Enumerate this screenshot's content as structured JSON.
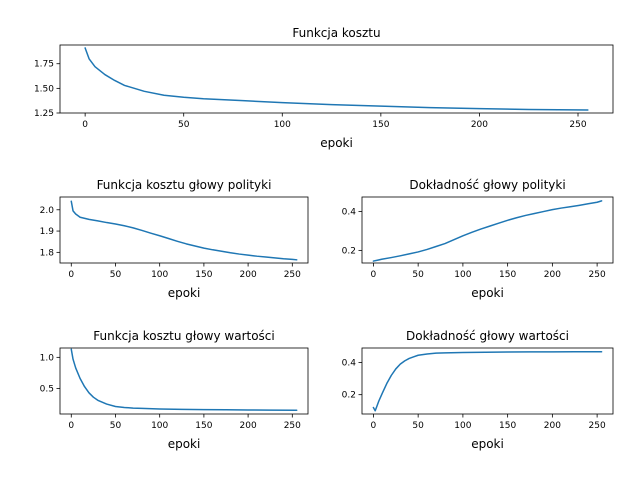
{
  "chart_data": [
    {
      "type": "line",
      "title": "Funkcja kosztu",
      "xlabel": "epoki",
      "ylabel": "",
      "xlim": [
        -12.75,
        267.75
      ],
      "ylim": [
        1.25,
        1.94
      ],
      "xticks": [
        0,
        50,
        100,
        150,
        200,
        250
      ],
      "yticks": [
        1.25,
        1.5,
        1.75
      ],
      "ytick_labels": [
        "1.25",
        "1.50",
        "1.75"
      ],
      "grid": false,
      "series": [
        {
          "x": [
            0,
            2,
            5,
            10,
            15,
            20,
            30,
            40,
            50,
            60,
            80,
            100,
            125,
            150,
            175,
            200,
            225,
            255
          ],
          "values": [
            1.91,
            1.8,
            1.72,
            1.64,
            1.58,
            1.53,
            1.47,
            1.43,
            1.41,
            1.395,
            1.375,
            1.355,
            1.335,
            1.32,
            1.305,
            1.295,
            1.285,
            1.28
          ]
        }
      ]
    },
    {
      "type": "line",
      "title": "Funkcja kosztu głowy polityki",
      "xlabel": "epoki",
      "ylabel": "",
      "xlim": [
        -12.75,
        267.75
      ],
      "ylim": [
        1.75,
        2.06
      ],
      "xticks": [
        0,
        50,
        100,
        150,
        200,
        250
      ],
      "yticks": [
        1.8,
        1.9,
        2.0
      ],
      "ytick_labels": [
        "1.8",
        "1.9",
        "2.0"
      ],
      "grid": false,
      "series": [
        {
          "x": [
            0,
            2,
            5,
            10,
            20,
            30,
            40,
            50,
            60,
            70,
            80,
            90,
            100,
            110,
            120,
            130,
            140,
            150,
            160,
            170,
            180,
            190,
            200,
            210,
            220,
            230,
            240,
            250,
            255
          ],
          "values": [
            2.04,
            1.995,
            1.98,
            1.965,
            1.955,
            1.948,
            1.94,
            1.933,
            1.925,
            1.915,
            1.903,
            1.89,
            1.878,
            1.865,
            1.852,
            1.84,
            1.83,
            1.82,
            1.812,
            1.805,
            1.798,
            1.792,
            1.787,
            1.782,
            1.778,
            1.774,
            1.77,
            1.767,
            1.765
          ]
        }
      ]
    },
    {
      "type": "line",
      "title": "Dokładność głowy polityki",
      "xlabel": "epoki",
      "ylabel": "",
      "xlim": [
        -12.75,
        267.75
      ],
      "ylim": [
        0.135,
        0.475
      ],
      "xticks": [
        0,
        50,
        100,
        150,
        200,
        250
      ],
      "yticks": [
        0.2,
        0.4
      ],
      "ytick_labels": [
        "0.2",
        "0.4"
      ],
      "grid": false,
      "series": [
        {
          "x": [
            0,
            5,
            10,
            20,
            30,
            40,
            50,
            60,
            70,
            80,
            90,
            100,
            110,
            120,
            130,
            140,
            150,
            160,
            170,
            180,
            190,
            200,
            210,
            220,
            230,
            240,
            250,
            255
          ],
          "values": [
            0.145,
            0.15,
            0.155,
            0.163,
            0.172,
            0.182,
            0.192,
            0.205,
            0.22,
            0.235,
            0.255,
            0.275,
            0.293,
            0.31,
            0.325,
            0.34,
            0.355,
            0.368,
            0.38,
            0.39,
            0.4,
            0.41,
            0.418,
            0.425,
            0.432,
            0.44,
            0.448,
            0.455
          ]
        }
      ]
    },
    {
      "type": "line",
      "title": "Funkcja kosztu głowy wartości",
      "xlabel": "epoki",
      "ylabel": "",
      "xlim": [
        -12.75,
        267.75
      ],
      "ylim": [
        0.09,
        1.15
      ],
      "xticks": [
        0,
        50,
        100,
        150,
        200,
        250
      ],
      "yticks": [
        0.5,
        1.0
      ],
      "ytick_labels": [
        "0.5",
        "1.0"
      ],
      "grid": false,
      "series": [
        {
          "x": [
            0,
            2,
            5,
            10,
            15,
            20,
            25,
            30,
            40,
            50,
            60,
            70,
            80,
            100,
            125,
            150,
            175,
            200,
            225,
            255
          ],
          "values": [
            1.13,
            0.97,
            0.83,
            0.66,
            0.53,
            0.43,
            0.36,
            0.31,
            0.25,
            0.21,
            0.195,
            0.185,
            0.18,
            0.17,
            0.165,
            0.16,
            0.158,
            0.155,
            0.153,
            0.15
          ]
        }
      ]
    },
    {
      "type": "line",
      "title": "Dokładność głowy wartości",
      "xlabel": "epoki",
      "ylabel": "",
      "xlim": [
        -12.75,
        267.75
      ],
      "ylim": [
        0.08,
        0.49
      ],
      "xticks": [
        0,
        50,
        100,
        150,
        200,
        250
      ],
      "yticks": [
        0.2,
        0.4
      ],
      "ytick_labels": [
        "0.2",
        "0.4"
      ],
      "grid": false,
      "series": [
        {
          "x": [
            0,
            2,
            4,
            6,
            10,
            15,
            20,
            25,
            30,
            35,
            40,
            45,
            50,
            60,
            70,
            80,
            100,
            125,
            150,
            175,
            200,
            225,
            255
          ],
          "values": [
            0.12,
            0.1,
            0.13,
            0.16,
            0.21,
            0.27,
            0.32,
            0.36,
            0.39,
            0.41,
            0.425,
            0.435,
            0.445,
            0.453,
            0.458,
            0.46,
            0.462,
            0.464,
            0.465,
            0.466,
            0.466,
            0.467,
            0.467
          ]
        }
      ]
    }
  ]
}
